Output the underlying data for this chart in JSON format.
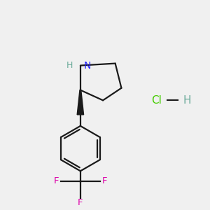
{
  "background_color": "#f0f0f0",
  "bond_color": "#1a1a1a",
  "N_color": "#2020ff",
  "F_color": "#dd00aa",
  "Cl_color": "#44cc00",
  "H_color": "#6aaa99",
  "N_label": "N",
  "H_label": "H",
  "F_label": "F",
  "Cl_label": "Cl",
  "figsize": [
    3.0,
    3.0
  ],
  "dpi": 100
}
